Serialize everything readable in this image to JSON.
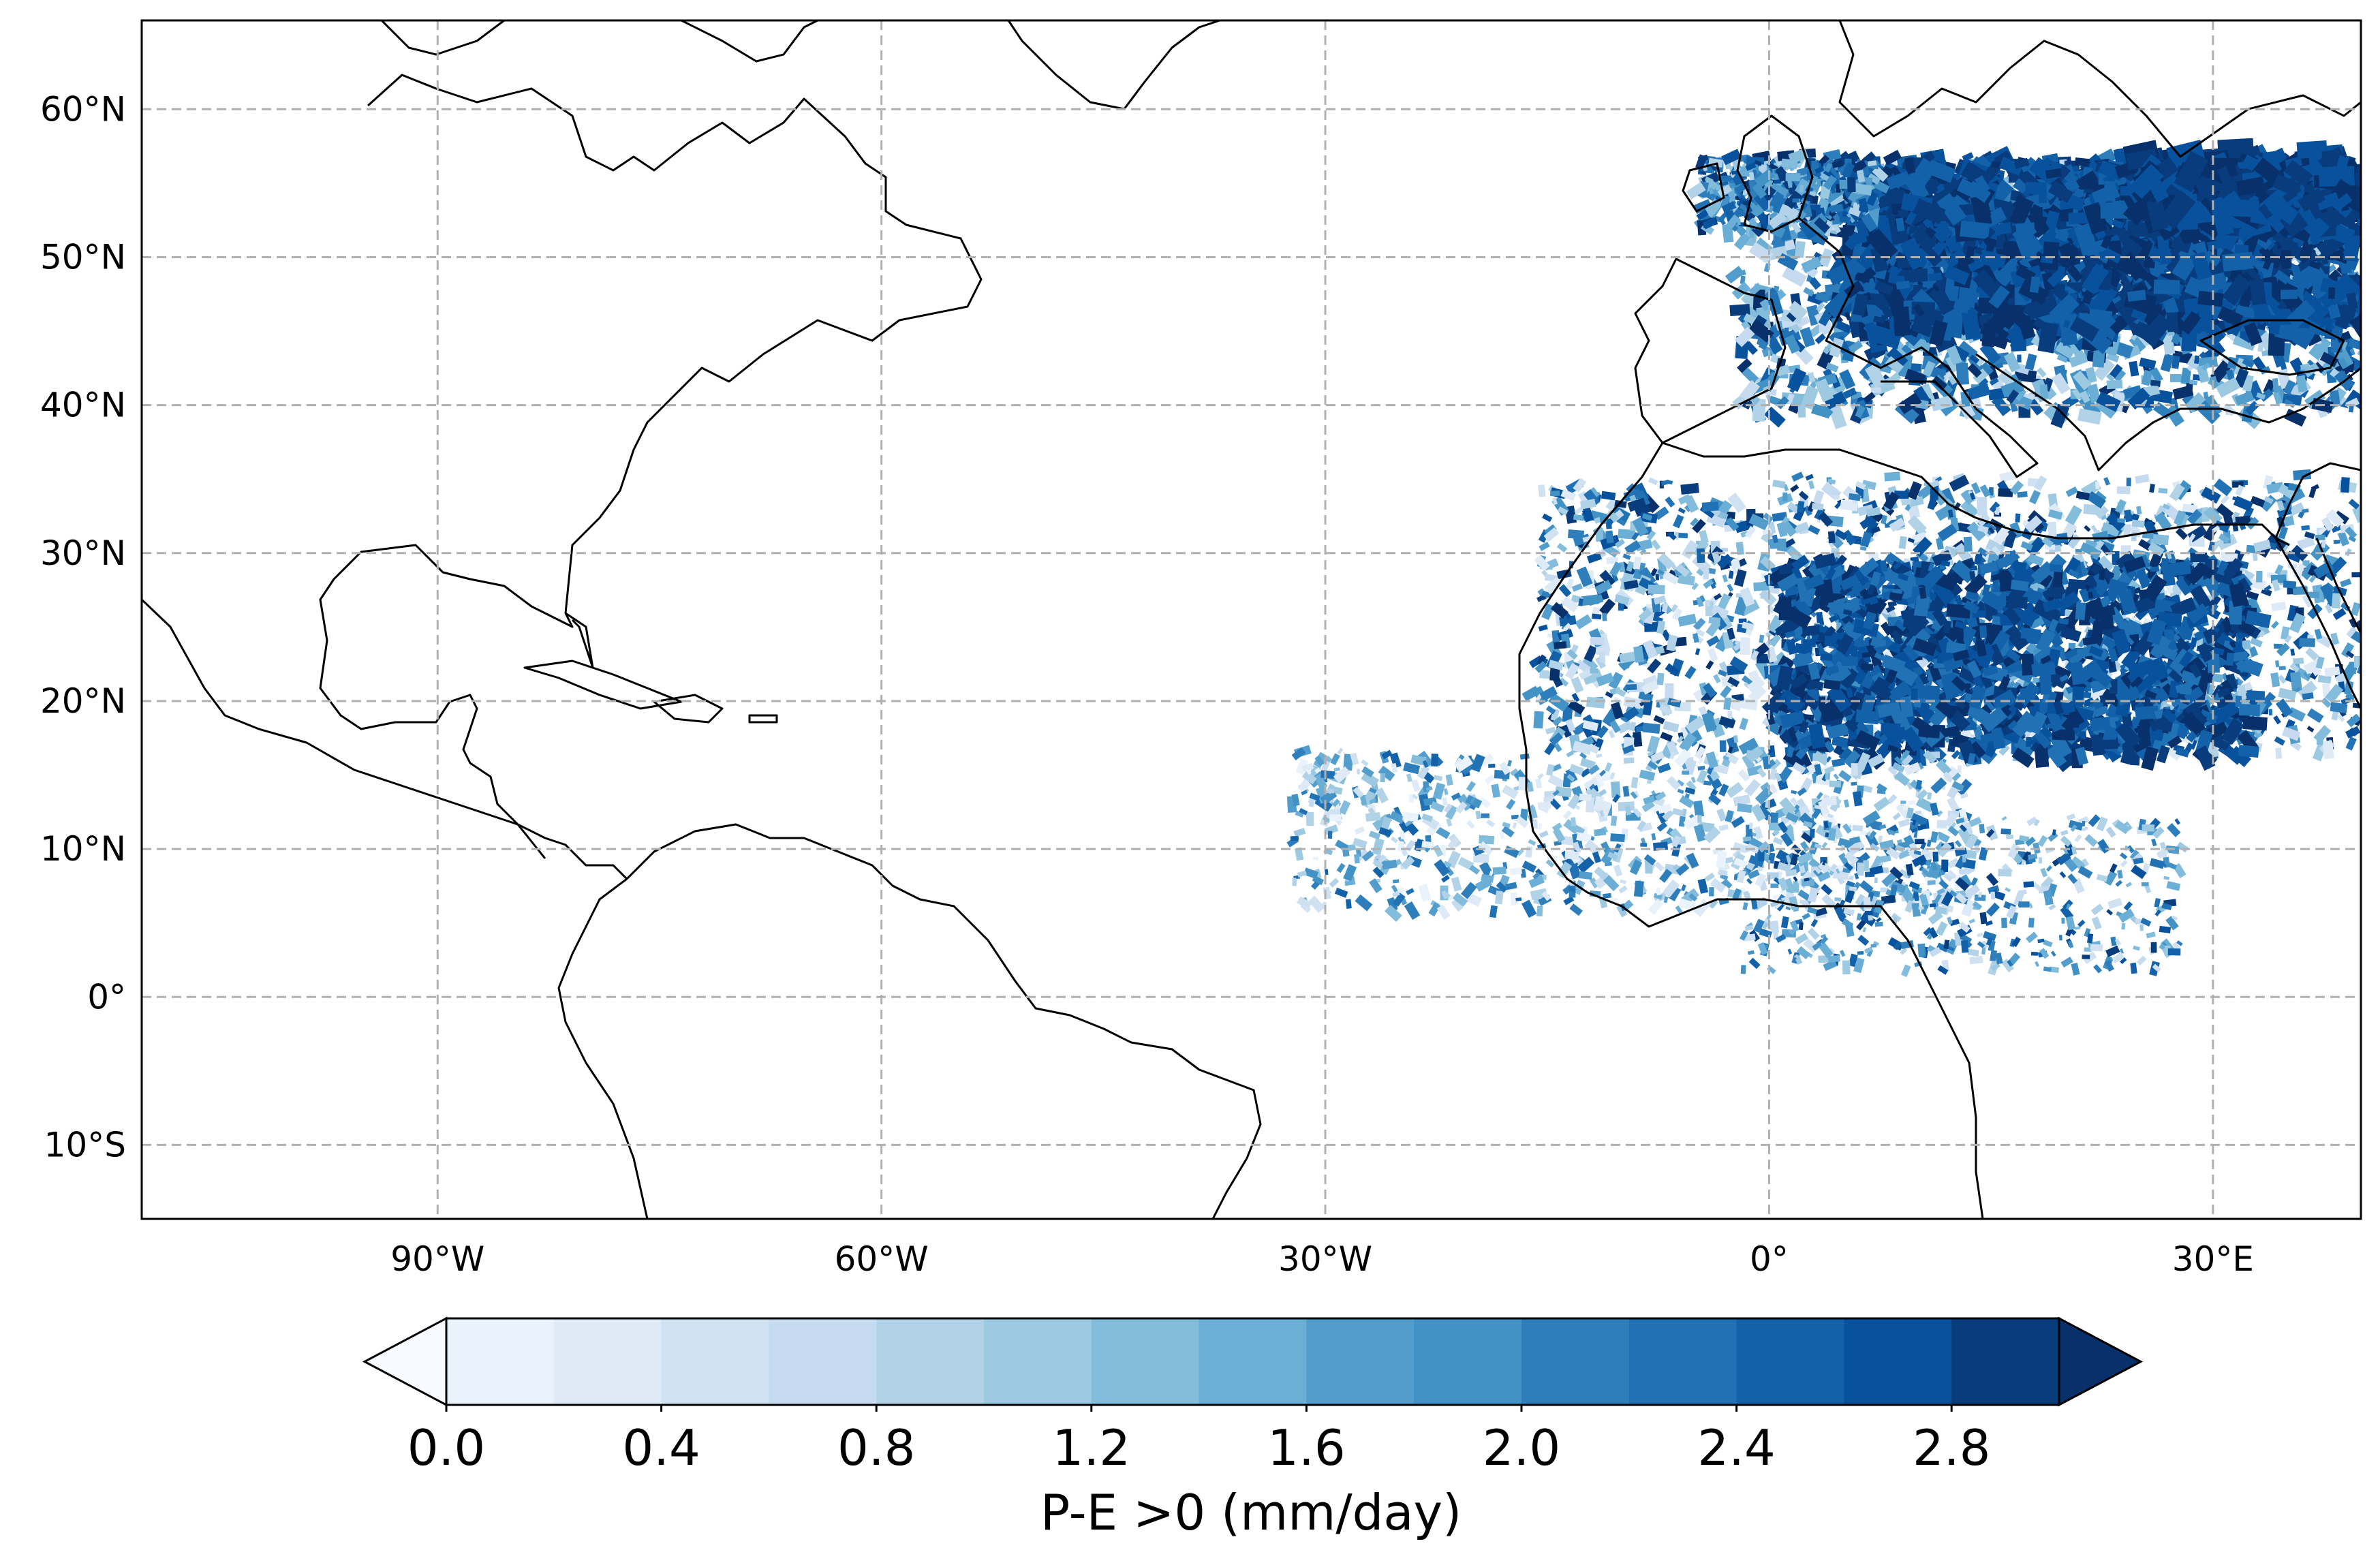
{
  "map": {
    "projection": "PlateCarree",
    "extent": {
      "lon_min": -110,
      "lon_max": 40,
      "lat_min": -15,
      "lat_max": 66
    },
    "gridlines": {
      "style": "dashed",
      "color": "#b0b0b0",
      "lons": [
        -90,
        -60,
        -30,
        0,
        30
      ],
      "lats": [
        -10,
        0,
        10,
        20,
        30,
        40,
        50,
        60
      ]
    },
    "x_ticks": [
      {
        "lon": -90,
        "label": "90°W"
      },
      {
        "lon": -60,
        "label": "60°W"
      },
      {
        "lon": -30,
        "label": "30°W"
      },
      {
        "lon": 0,
        "label": "0°"
      },
      {
        "lon": 30,
        "label": "30°E"
      }
    ],
    "y_ticks": [
      {
        "lat": 60,
        "label": "60°N"
      },
      {
        "lat": 50,
        "label": "50°N"
      },
      {
        "lat": 40,
        "label": "40°N"
      },
      {
        "lat": 30,
        "label": "30°N"
      },
      {
        "lat": 20,
        "label": "20°N"
      },
      {
        "lat": 10,
        "label": "10°N"
      },
      {
        "lat": 0,
        "label": "0°"
      },
      {
        "lat": -10,
        "label": "10°S"
      }
    ]
  },
  "colorbar": {
    "label": "P-E >0 (mm/day)",
    "extend": "both",
    "levels": [
      0.0,
      0.2,
      0.4,
      0.6,
      0.8,
      1.0,
      1.2,
      1.4,
      1.6,
      1.8,
      2.0,
      2.2,
      2.4,
      2.6,
      2.8,
      3.0
    ],
    "colors": [
      "#f7fbff",
      "#eaf3fb",
      "#deebf7",
      "#d0e2f2",
      "#c6dbef",
      "#b2d2e8",
      "#9ecae1",
      "#84bcdb",
      "#6baed6",
      "#529dcc",
      "#4292c6",
      "#2f7ebc",
      "#2171b5",
      "#1361a8",
      "#08519c",
      "#083c7d",
      "#08306b"
    ],
    "tick_labels": [
      {
        "value": 0.0,
        "label": "0.0"
      },
      {
        "value": 0.4,
        "label": "0.4"
      },
      {
        "value": 0.8,
        "label": "0.8"
      },
      {
        "value": 1.2,
        "label": "1.2"
      },
      {
        "value": 1.6,
        "label": "1.6"
      },
      {
        "value": 2.0,
        "label": "2.0"
      },
      {
        "value": 2.4,
        "label": "2.4"
      },
      {
        "value": 2.8,
        "label": "2.8"
      }
    ]
  }
}
